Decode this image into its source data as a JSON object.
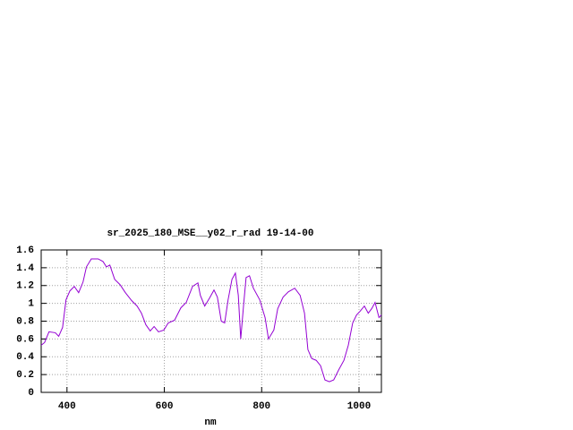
{
  "chart_data": {
    "type": "line",
    "title": "sr_2025_180_MSE__y02_r_rad 19-14-00",
    "x_label": "nm",
    "color": "#9400d3",
    "grid": true,
    "xlim": [
      347,
      1046
    ],
    "ylim": [
      0,
      1.6
    ],
    "xticks": [
      400,
      600,
      800,
      1000
    ],
    "yticks": [
      0,
      0.2,
      0.4,
      0.6,
      0.8,
      1,
      1.2,
      1.4,
      1.6
    ],
    "x": [
      347,
      354,
      363,
      376,
      383,
      391,
      398,
      406,
      415,
      424,
      433,
      440,
      450,
      464,
      474,
      481,
      488,
      498,
      509,
      520,
      533,
      544,
      553,
      562,
      571,
      579,
      588,
      599,
      608,
      621,
      634,
      645,
      658,
      669,
      674,
      683,
      693,
      702,
      709,
      717,
      724,
      731,
      739,
      746,
      752,
      757,
      763,
      768,
      775,
      783,
      796,
      807,
      814,
      825,
      833,
      844,
      855,
      868,
      879,
      888,
      895,
      903,
      912,
      921,
      930,
      939,
      948,
      958,
      969,
      978,
      987,
      995,
      1002,
      1011,
      1019,
      1026,
      1033,
      1041,
      1046
    ],
    "values": [
      0.53,
      0.56,
      0.68,
      0.67,
      0.63,
      0.73,
      1.04,
      1.14,
      1.19,
      1.12,
      1.24,
      1.41,
      1.5,
      1.5,
      1.47,
      1.41,
      1.43,
      1.27,
      1.21,
      1.12,
      1.03,
      0.97,
      0.89,
      0.76,
      0.69,
      0.74,
      0.68,
      0.7,
      0.78,
      0.81,
      0.95,
      1.01,
      1.19,
      1.23,
      1.09,
      0.97,
      1.06,
      1.15,
      1.07,
      0.8,
      0.78,
      1.04,
      1.27,
      1.34,
      1.09,
      0.6,
      0.99,
      1.29,
      1.31,
      1.17,
      1.04,
      0.84,
      0.6,
      0.7,
      0.94,
      1.07,
      1.13,
      1.17,
      1.09,
      0.89,
      0.48,
      0.38,
      0.36,
      0.3,
      0.14,
      0.12,
      0.14,
      0.25,
      0.36,
      0.53,
      0.78,
      0.87,
      0.91,
      0.97,
      0.89,
      0.94,
      1.01,
      0.84,
      0.87
    ]
  }
}
